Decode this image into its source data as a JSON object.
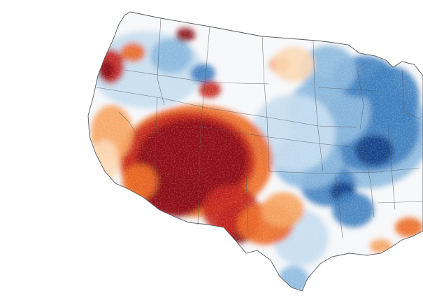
{
  "map": {
    "subject": "contiguous-united-states",
    "style": "diverging-anomaly-choropleth",
    "colors": {
      "background": "#ffffff",
      "extreme_dry": "#8b0a17",
      "very_dry": "#c4261d",
      "dry": "#ec6a25",
      "moderately_dry": "#f6a35f",
      "slightly_dry": "#fbd8b4",
      "neutral": "#f7f8fa",
      "slightly_wet": "#c6dcef",
      "wet": "#8bb8dd",
      "very_wet": "#3f80bf",
      "extreme_wet": "#0f3f86",
      "boundary_lines": "#5a5a5a"
    }
  }
}
